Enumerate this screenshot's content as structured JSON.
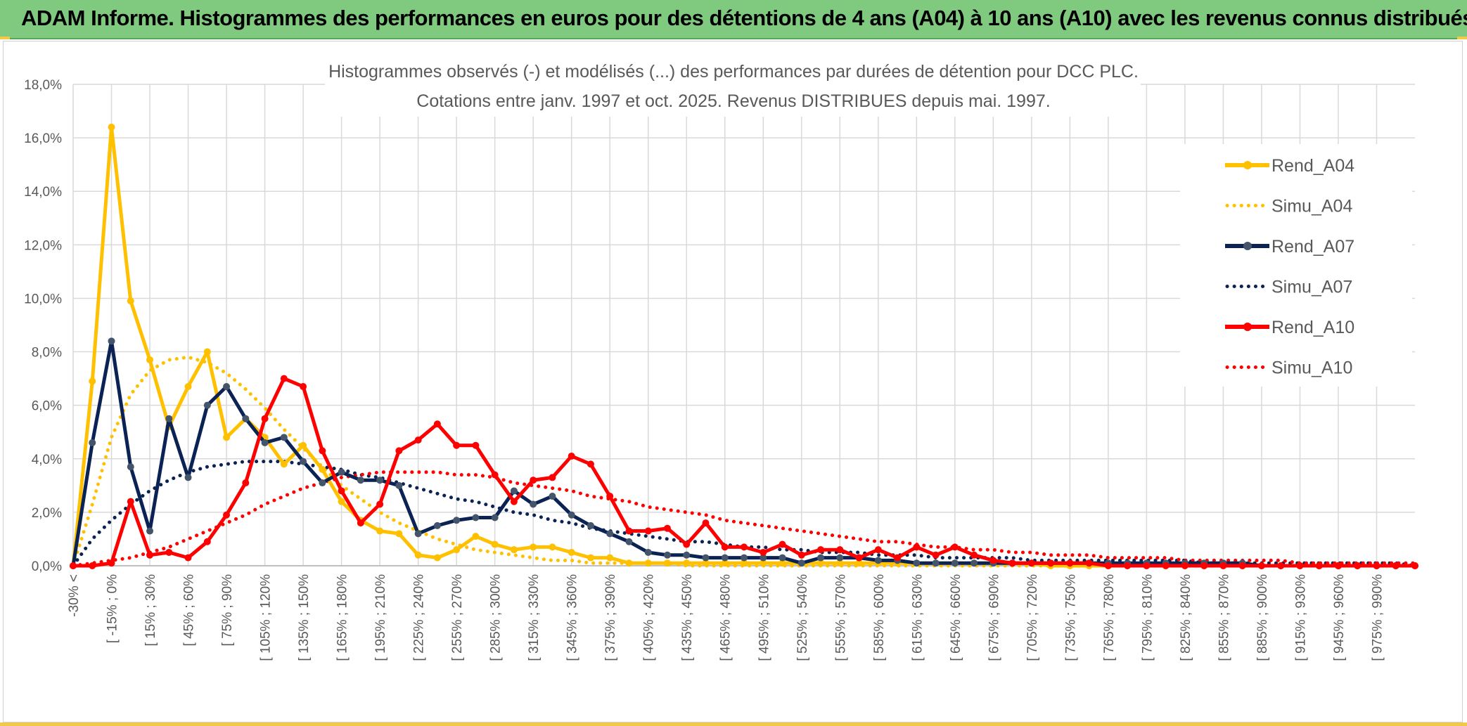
{
  "banner": {
    "title": "ADAM Informe. Histogrammes des performances en euros pour des détentions de 4 ans (A04) à 10 ans (A10) avec les revenus connus distribués"
  },
  "chart_data": {
    "type": "line",
    "title_line1": "Histogrammes observés (-) et modélisés (...) des performances par durées de détention pour DCC PLC.",
    "title_line2": "Cotations entre janv. 1997 et oct. 2025. Revenus DISTRIBUES depuis mai. 1997.",
    "xlabel": "",
    "ylabel": "",
    "ylim": [
      0,
      18
    ],
    "yticks": [
      "0,0%",
      "2,0%",
      "4,0%",
      "6,0%",
      "8,0%",
      "10,0%",
      "12,0%",
      "14,0%",
      "16,0%",
      "18,0%"
    ],
    "x_labels": [
      "-30% <",
      "[ -15% ; 0%",
      "[ 15% ; 30%",
      "[ 45% ; 60%",
      "[ 75% ; 90%",
      "[ 105% ; 120%",
      "[ 135% ; 150%",
      "[ 165% ; 180%",
      "[ 195% ; 210%",
      "[ 225% ; 240%",
      "[ 255% ; 270%",
      "[ 285% ; 300%",
      "[ 315% ; 330%",
      "[ 345% ; 360%",
      "[ 375% ; 390%",
      "[ 405% ; 420%",
      "[ 435% ; 450%",
      "[ 465% ; 480%",
      "[ 495% ; 510%",
      "[ 525% ; 540%",
      "[ 555% ; 570%",
      "[ 585% ; 600%",
      "[ 615% ; 630%",
      "[ 645% ; 660%",
      "[ 675% ; 690%",
      "[ 705% ; 720%",
      "[ 735% ; 750%",
      "[ 765% ; 780%",
      "[ 795% ; 810%",
      "[ 825% ; 840%",
      "[ 855% ; 870%",
      "[ 885% ; 900%",
      "[ 915% ; 930%",
      "[ 945% ; 960%",
      "[ 975% ; 990%"
    ],
    "series": [
      {
        "name": "Rend_A04",
        "style": "solid",
        "color": "#ffc000",
        "values": [
          0,
          6.9,
          16.4,
          9.9,
          7.7,
          5.2,
          6.7,
          8.0,
          4.8,
          5.5,
          4.8,
          3.8,
          4.5,
          3.6,
          2.4,
          1.7,
          1.3,
          1.2,
          0.4,
          0.3,
          0.6,
          1.1,
          0.8,
          0.6,
          0.7,
          0.7,
          0.5,
          0.3,
          0.3,
          0.1,
          0.1,
          0.1,
          0.1,
          0.1,
          0.1,
          0.1,
          0.1,
          0.1,
          0.1,
          0.1,
          0.1,
          0.1,
          0.1,
          0.1,
          0.1,
          0.1,
          0.1,
          0.1,
          0.1,
          0.1,
          0.1,
          0,
          0,
          0,
          0,
          0,
          0,
          0,
          0,
          0,
          0,
          0,
          0,
          0,
          0,
          0,
          0,
          0,
          0,
          0,
          0
        ]
      },
      {
        "name": "Simu_A04",
        "style": "dotted",
        "color": "#ffc000",
        "values": [
          0,
          2.3,
          4.8,
          6.4,
          7.3,
          7.7,
          7.8,
          7.6,
          7.2,
          6.6,
          5.9,
          5.1,
          4.4,
          3.7,
          3.0,
          2.5,
          2.0,
          1.6,
          1.3,
          1.0,
          0.8,
          0.6,
          0.5,
          0.4,
          0.3,
          0.2,
          0.2,
          0.1,
          0.1,
          0.1,
          0.1,
          0.1,
          0,
          0,
          0,
          0,
          0,
          0,
          0,
          0,
          0,
          0,
          0,
          0,
          0,
          0,
          0,
          0,
          0,
          0,
          0,
          0,
          0,
          0,
          0,
          0,
          0,
          0,
          0,
          0,
          0,
          0,
          0,
          0,
          0,
          0,
          0,
          0,
          0,
          0,
          0
        ]
      },
      {
        "name": "Rend_A07",
        "style": "solid",
        "color": "#0b2354",
        "values": [
          0,
          4.6,
          8.4,
          3.7,
          1.3,
          5.5,
          3.3,
          6.0,
          6.7,
          5.5,
          4.6,
          4.8,
          3.9,
          3.1,
          3.5,
          3.2,
          3.2,
          3.0,
          1.2,
          1.5,
          1.7,
          1.8,
          1.8,
          2.8,
          2.3,
          2.6,
          1.9,
          1.5,
          1.2,
          0.9,
          0.5,
          0.4,
          0.4,
          0.3,
          0.3,
          0.3,
          0.3,
          0.3,
          0.1,
          0.3,
          0.3,
          0.3,
          0.2,
          0.2,
          0.1,
          0.1,
          0.1,
          0.1,
          0.1,
          0.1,
          0.1,
          0.1,
          0.1,
          0.1,
          0.1,
          0.1,
          0.1,
          0.1,
          0.1,
          0.1,
          0.1,
          0.1,
          0,
          0,
          0,
          0,
          0,
          0,
          0,
          0,
          0
        ]
      },
      {
        "name": "Simu_A07",
        "style": "dotted",
        "color": "#0b2354",
        "values": [
          0,
          1.0,
          1.7,
          2.3,
          2.8,
          3.2,
          3.5,
          3.7,
          3.8,
          3.9,
          3.9,
          3.9,
          3.8,
          3.7,
          3.6,
          3.4,
          3.3,
          3.1,
          2.9,
          2.7,
          2.5,
          2.4,
          2.2,
          2.0,
          1.9,
          1.7,
          1.6,
          1.4,
          1.3,
          1.2,
          1.1,
          1.0,
          0.9,
          0.9,
          0.8,
          0.7,
          0.7,
          0.6,
          0.6,
          0.5,
          0.5,
          0.5,
          0.4,
          0.4,
          0.4,
          0.3,
          0.3,
          0.3,
          0.3,
          0.3,
          0.2,
          0.2,
          0.2,
          0.2,
          0.2,
          0.2,
          0.2,
          0.2,
          0.2,
          0.1,
          0.1,
          0.1,
          0.1,
          0.1,
          0.1,
          0.1,
          0.1,
          0.1,
          0.1,
          0.1,
          0
        ]
      },
      {
        "name": "Rend_A10",
        "style": "solid",
        "color": "#ff0000",
        "values": [
          0,
          0,
          0.1,
          2.4,
          0.4,
          0.5,
          0.3,
          0.9,
          1.9,
          3.1,
          5.5,
          7.0,
          6.7,
          4.3,
          2.8,
          1.6,
          2.3,
          4.3,
          4.7,
          5.3,
          4.5,
          4.5,
          3.4,
          2.4,
          3.2,
          3.3,
          4.1,
          3.8,
          2.6,
          1.3,
          1.3,
          1.4,
          0.8,
          1.6,
          0.7,
          0.7,
          0.5,
          0.8,
          0.4,
          0.6,
          0.6,
          0.3,
          0.6,
          0.3,
          0.7,
          0.4,
          0.7,
          0.4,
          0.2,
          0.1,
          0.1,
          0.1,
          0.1,
          0.1,
          0,
          0,
          0,
          0,
          0,
          0,
          0,
          0,
          0,
          0,
          0,
          0,
          0,
          0,
          0,
          0,
          0
        ]
      },
      {
        "name": "Simu_A10",
        "style": "dotted",
        "color": "#ff0000",
        "values": [
          0,
          0.1,
          0.2,
          0.3,
          0.5,
          0.7,
          1.0,
          1.3,
          1.6,
          1.9,
          2.3,
          2.6,
          2.9,
          3.1,
          3.3,
          3.4,
          3.5,
          3.5,
          3.5,
          3.5,
          3.4,
          3.4,
          3.3,
          3.1,
          3.0,
          2.9,
          2.8,
          2.6,
          2.5,
          2.4,
          2.2,
          2.1,
          2.0,
          1.9,
          1.7,
          1.6,
          1.5,
          1.4,
          1.3,
          1.2,
          1.1,
          1.0,
          0.9,
          0.9,
          0.8,
          0.7,
          0.7,
          0.6,
          0.6,
          0.5,
          0.5,
          0.4,
          0.4,
          0.4,
          0.3,
          0.3,
          0.3,
          0.3,
          0.2,
          0.2,
          0.2,
          0.2,
          0.2,
          0.2,
          0.1,
          0.1,
          0.1,
          0.1,
          0.1,
          0.1,
          0.1
        ]
      }
    ]
  }
}
